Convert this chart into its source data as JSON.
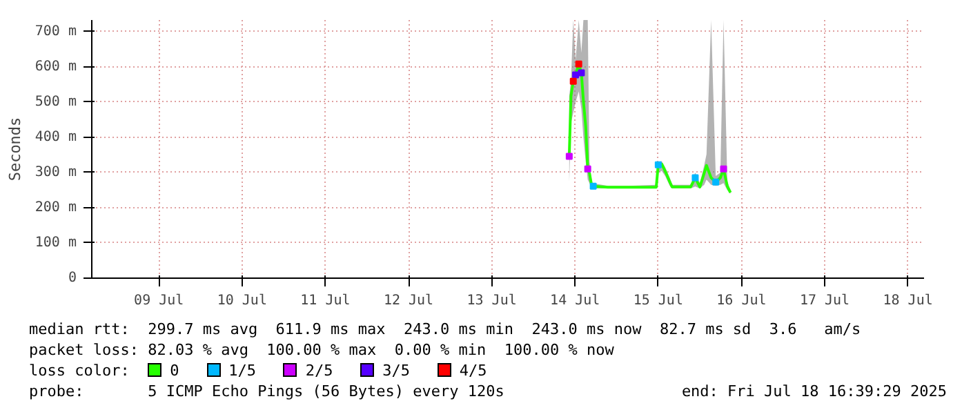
{
  "chart_data": {
    "type": "line",
    "ylabel": "Seconds",
    "legend_title": "loss color:",
    "legend": "bottom",
    "grid": true,
    "xlim": [
      "2025-07-08T16:39",
      "2025-07-18T16:39"
    ],
    "xticks": [
      {
        "value": "2025-07-09T12:00",
        "label": "09 Jul"
      },
      {
        "value": "2025-07-10T12:00",
        "label": "10 Jul"
      },
      {
        "value": "2025-07-11T12:00",
        "label": "11 Jul"
      },
      {
        "value": "2025-07-12T12:00",
        "label": "12 Jul"
      },
      {
        "value": "2025-07-13T12:00",
        "label": "13 Jul"
      },
      {
        "value": "2025-07-14T12:00",
        "label": "14 Jul"
      },
      {
        "value": "2025-07-15T12:00",
        "label": "15 Jul"
      },
      {
        "value": "2025-07-16T12:00",
        "label": "16 Jul"
      },
      {
        "value": "2025-07-17T12:00",
        "label": "17 Jul"
      },
      {
        "value": "2025-07-18T12:00",
        "label": "18 Jul"
      }
    ],
    "ylim": [
      0,
      733
    ],
    "yticks": [
      0,
      {
        "value": 100,
        "label": "100 m"
      },
      {
        "value": 200,
        "label": "200 m"
      },
      {
        "value": 300,
        "label": "300 m"
      },
      {
        "value": 400,
        "label": "400 m"
      },
      {
        "value": 500,
        "label": "500 m"
      },
      {
        "value": 600,
        "label": "600 m"
      },
      {
        "value": 700,
        "label": "700 m"
      }
    ],
    "series": [
      {
        "name": "0",
        "color": "#26ff00",
        "x": [
          "2025-07-14T10:20",
          "2025-07-14T10:50",
          "2025-07-14T11:30",
          "2025-07-14T12:10",
          "2025-07-14T13:05",
          "2025-07-14T13:50",
          "2025-07-14T14:25",
          "2025-07-14T15:05",
          "2025-07-14T15:40",
          "2025-07-14T16:10",
          "2025-07-14T16:50",
          "2025-07-14T21:30",
          "2025-07-15T03:25",
          "2025-07-15T11:25",
          "2025-07-15T12:00",
          "2025-07-15T13:00",
          "2025-07-15T14:00",
          "2025-07-15T15:20",
          "2025-07-15T16:00",
          "2025-07-15T21:20",
          "2025-07-15T22:40",
          "2025-07-16T00:00",
          "2025-07-16T01:15",
          "2025-07-16T01:55",
          "2025-07-16T03:15",
          "2025-07-16T04:35",
          "2025-07-16T05:55",
          "2025-07-16T06:50",
          "2025-07-16T07:55",
          "2025-07-16T08:50"
        ],
        "values": [
          346,
          517,
          559,
          577,
          608,
          583,
          504,
          431,
          310,
          298,
          261,
          258,
          258,
          258,
          322,
          324,
          304,
          273,
          259,
          259,
          285,
          259,
          298,
          320,
          285,
          273,
          285,
          310,
          261,
          243
        ],
        "lower": [
          273,
          440,
          470,
          500,
          530,
          480,
          400,
          330,
          280,
          270,
          255,
          255,
          255,
          255,
          300,
          305,
          290,
          262,
          255,
          255,
          260,
          255,
          265,
          280,
          265,
          262,
          265,
          270,
          250,
          240
        ],
        "upper": [
          517,
          560,
          733,
          620,
          733,
          640,
          733,
          733,
          733,
          330,
          270,
          262,
          262,
          265,
          330,
          332,
          315,
          285,
          265,
          265,
          300,
          270,
          320,
          352,
          733,
          290,
          300,
          733,
          275,
          250
        ]
      },
      {
        "name": "1/5",
        "type": "scatter",
        "marker": "square",
        "color": "#00b8ff",
        "x": [
          "2025-07-14T17:15",
          "2025-07-15T12:00",
          "2025-07-15T22:40",
          "2025-07-16T04:35"
        ],
        "values": [
          261,
          322,
          285,
          273
        ]
      },
      {
        "name": "2/5",
        "type": "scatter",
        "marker": "square",
        "color": "#cc00ff",
        "x": [
          "2025-07-14T10:20",
          "2025-07-14T15:40",
          "2025-07-16T06:50"
        ],
        "values": [
          346,
          310,
          310
        ]
      },
      {
        "name": "3/5",
        "type": "scatter",
        "marker": "square",
        "color": "#5500ff",
        "x": [
          "2025-07-14T12:10",
          "2025-07-14T13:50"
        ],
        "values": [
          577,
          583
        ]
      },
      {
        "name": "4/5",
        "type": "scatter",
        "marker": "square",
        "color": "#ff0000",
        "x": [
          "2025-07-14T11:30",
          "2025-07-14T13:05"
        ],
        "values": [
          559,
          608
        ]
      }
    ],
    "annotations": [
      "median rtt:  299.7 ms avg  611.9 ms max  243.0 ms min  243.0 ms now  82.7 ms sd  3.6   am/s",
      "packet loss: 82.03 % avg  100.00 % max  0.00 % min  100.00 % now",
      "probe:       5 ICMP Echo Pings (56 Bytes) every 120s",
      "end: Fri Jul 18 16:39:29 2025"
    ]
  }
}
